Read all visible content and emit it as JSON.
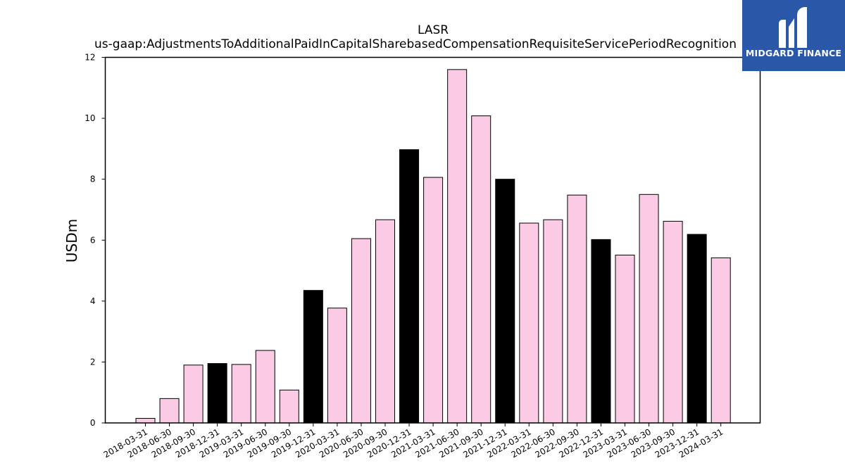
{
  "chart_data": {
    "type": "bar",
    "title": "LASR",
    "subtitle": "us-gaap:AdjustmentsToAdditionalPaidInCapitalSharebasedCompensationRequisiteServicePeriodRecognition",
    "xlabel": "",
    "ylabel": "USDm",
    "ylim": [
      0,
      12
    ],
    "yticks": [
      "0",
      "2",
      "4",
      "6",
      "8",
      "10",
      "12"
    ],
    "grid": false,
    "categories": [
      "2018-03-31",
      "2018-06-30",
      "2018-09-30",
      "2018-12-31",
      "2019-03-31",
      "2019-06-30",
      "2019-09-30",
      "2019-12-31",
      "2020-03-31",
      "2020-06-30",
      "2020-09-30",
      "2020-12-31",
      "2021-03-31",
      "2021-06-30",
      "2021-09-30",
      "2021-12-31",
      "2022-03-31",
      "2022-06-30",
      "2022-09-30",
      "2022-12-31",
      "2023-03-31",
      "2023-06-30",
      "2023-09-30",
      "2023-12-31",
      "2024-03-31"
    ],
    "values": [
      0.15,
      0.8,
      1.9,
      1.95,
      1.92,
      2.38,
      1.08,
      4.35,
      3.77,
      6.05,
      6.67,
      8.97,
      8.06,
      11.6,
      10.08,
      8.0,
      6.56,
      6.67,
      7.48,
      6.02,
      5.51,
      7.5,
      6.62,
      6.19,
      5.42
    ],
    "highlight": [
      false,
      false,
      false,
      true,
      false,
      false,
      false,
      true,
      false,
      false,
      false,
      true,
      false,
      false,
      false,
      true,
      false,
      false,
      false,
      true,
      false,
      false,
      false,
      true,
      false
    ],
    "colors": {
      "bar": "#fbcae4",
      "highlight": "#000000",
      "edge": "#000000"
    }
  },
  "logo": {
    "text": "MIDGARD FINANCE",
    "icon": "midgard-logo-icon",
    "background": "#2a57a8"
  }
}
